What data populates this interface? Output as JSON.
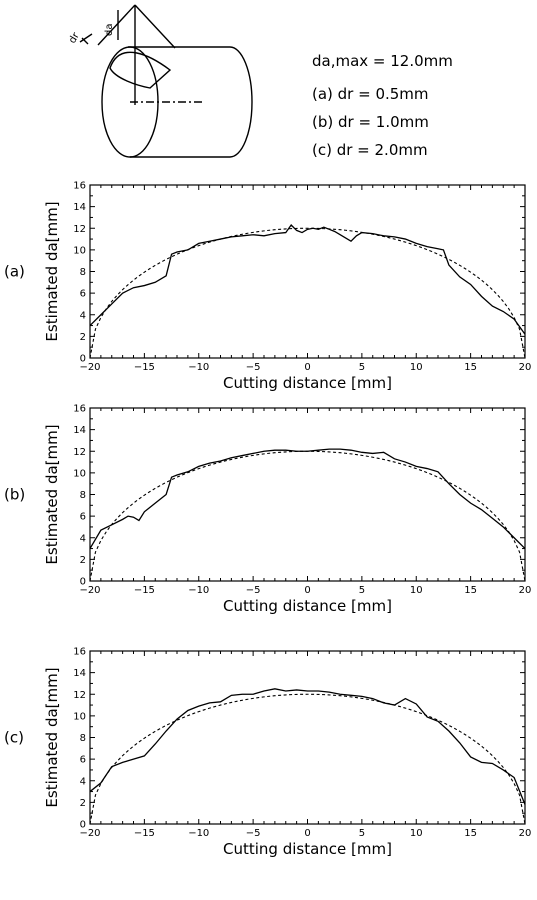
{
  "legend": {
    "max_line": "da,max = 12.0mm",
    "lines": [
      "(a) dr = 0.5mm",
      "(b) dr = 1.0mm",
      "(c) dr = 2.0mm"
    ]
  },
  "diagram": {
    "label_dr": "dr",
    "label_da": "da"
  },
  "chart_data": [
    {
      "type": "line",
      "panel": "(a)",
      "xlabel": "Cutting distance [mm]",
      "ylabel": "Estimated da[mm]",
      "xlim": [
        -20,
        20
      ],
      "ylim": [
        0,
        16
      ],
      "xticks": [
        -20,
        -15,
        -10,
        -5,
        0,
        5,
        10,
        15,
        20
      ],
      "yticks": [
        0,
        2,
        4,
        6,
        8,
        10,
        12,
        14,
        16
      ],
      "series": [
        {
          "style": "solid",
          "points": [
            [
              -20,
              3.0
            ],
            [
              -19,
              4.0
            ],
            [
              -18,
              5.0
            ],
            [
              -17,
              6.0
            ],
            [
              -16,
              6.5
            ],
            [
              -15,
              6.7
            ],
            [
              -14,
              7.0
            ],
            [
              -13,
              7.6
            ],
            [
              -12.5,
              9.6
            ],
            [
              -12,
              9.8
            ],
            [
              -11,
              10.0
            ],
            [
              -10,
              10.6
            ],
            [
              -9,
              10.8
            ],
            [
              -8,
              11.0
            ],
            [
              -7,
              11.2
            ],
            [
              -6,
              11.3
            ],
            [
              -5,
              11.4
            ],
            [
              -4,
              11.3
            ],
            [
              -3,
              11.5
            ],
            [
              -2,
              11.6
            ],
            [
              -1.5,
              12.3
            ],
            [
              -1,
              11.8
            ],
            [
              -0.5,
              11.6
            ],
            [
              0,
              11.9
            ],
            [
              0.5,
              12.0
            ],
            [
              1,
              11.9
            ],
            [
              1.5,
              12.1
            ],
            [
              2,
              11.9
            ],
            [
              2.5,
              11.7
            ],
            [
              3,
              11.4
            ],
            [
              3.5,
              11.1
            ],
            [
              4,
              10.8
            ],
            [
              4.5,
              11.3
            ],
            [
              5,
              11.6
            ],
            [
              6,
              11.5
            ],
            [
              7,
              11.3
            ],
            [
              8,
              11.2
            ],
            [
              9,
              11.0
            ],
            [
              10,
              10.6
            ],
            [
              11,
              10.3
            ],
            [
              12,
              10.1
            ],
            [
              12.5,
              10.0
            ],
            [
              13,
              8.6
            ],
            [
              14,
              7.5
            ],
            [
              15,
              6.8
            ],
            [
              16,
              5.7
            ],
            [
              17,
              4.8
            ],
            [
              18,
              4.3
            ],
            [
              19,
              3.6
            ],
            [
              20,
              2.2
            ]
          ]
        },
        {
          "style": "dashed",
          "points": "semicircle r=20, da_max=12"
        }
      ]
    },
    {
      "type": "line",
      "panel": "(b)",
      "xlabel": "Cutting distance [mm]",
      "ylabel": "Estimated da[mm]",
      "xlim": [
        -20,
        20
      ],
      "ylim": [
        0,
        16
      ],
      "xticks": [
        -20,
        -15,
        -10,
        -5,
        0,
        5,
        10,
        15,
        20
      ],
      "yticks": [
        0,
        2,
        4,
        6,
        8,
        10,
        12,
        14,
        16
      ],
      "series": [
        {
          "style": "solid",
          "points": [
            [
              -20,
              3.0
            ],
            [
              -19,
              4.7
            ],
            [
              -18,
              5.2
            ],
            [
              -17,
              5.7
            ],
            [
              -16.5,
              6.0
            ],
            [
              -16,
              5.9
            ],
            [
              -15.5,
              5.6
            ],
            [
              -15,
              6.4
            ],
            [
              -14,
              7.2
            ],
            [
              -13,
              8.0
            ],
            [
              -12.5,
              9.6
            ],
            [
              -12,
              9.8
            ],
            [
              -11,
              10.1
            ],
            [
              -10,
              10.6
            ],
            [
              -9,
              10.9
            ],
            [
              -8,
              11.1
            ],
            [
              -7,
              11.4
            ],
            [
              -6,
              11.6
            ],
            [
              -5,
              11.8
            ],
            [
              -4,
              12.0
            ],
            [
              -3,
              12.1
            ],
            [
              -2,
              12.1
            ],
            [
              -1,
              12.0
            ],
            [
              0,
              12.0
            ],
            [
              1,
              12.1
            ],
            [
              2,
              12.2
            ],
            [
              3,
              12.2
            ],
            [
              4,
              12.1
            ],
            [
              5,
              11.9
            ],
            [
              6,
              11.8
            ],
            [
              7,
              11.9
            ],
            [
              8,
              11.3
            ],
            [
              9,
              11.0
            ],
            [
              10,
              10.6
            ],
            [
              11,
              10.4
            ],
            [
              12,
              10.1
            ],
            [
              13,
              9.0
            ],
            [
              14,
              8.0
            ],
            [
              15,
              7.2
            ],
            [
              16,
              6.6
            ],
            [
              17,
              5.8
            ],
            [
              18,
              5.0
            ],
            [
              19,
              4.0
            ],
            [
              20,
              3.0
            ]
          ]
        },
        {
          "style": "dashed",
          "points": "semicircle r=20, da_max=12"
        }
      ]
    },
    {
      "type": "line",
      "panel": "(c)",
      "xlabel": "Cutting distance [mm]",
      "ylabel": "Estimated da[mm]",
      "xlim": [
        -20,
        20
      ],
      "ylim": [
        0,
        16
      ],
      "xticks": [
        -20,
        -15,
        -10,
        -5,
        0,
        5,
        10,
        15,
        20
      ],
      "yticks": [
        0,
        2,
        4,
        6,
        8,
        10,
        12,
        14,
        16
      ],
      "series": [
        {
          "style": "solid",
          "points": [
            [
              -20,
              3.0
            ],
            [
              -19,
              3.8
            ],
            [
              -18,
              5.3
            ],
            [
              -17,
              5.7
            ],
            [
              -16,
              6.0
            ],
            [
              -15,
              6.3
            ],
            [
              -14,
              7.4
            ],
            [
              -13,
              8.6
            ],
            [
              -12,
              9.7
            ],
            [
              -11,
              10.5
            ],
            [
              -10,
              10.9
            ],
            [
              -9,
              11.2
            ],
            [
              -8,
              11.3
            ],
            [
              -7,
              11.9
            ],
            [
              -6,
              12.0
            ],
            [
              -5,
              12.0
            ],
            [
              -4,
              12.3
            ],
            [
              -3,
              12.5
            ],
            [
              -2,
              12.3
            ],
            [
              -1,
              12.4
            ],
            [
              0,
              12.3
            ],
            [
              1,
              12.3
            ],
            [
              2,
              12.2
            ],
            [
              3,
              12.0
            ],
            [
              4,
              11.9
            ],
            [
              5,
              11.8
            ],
            [
              6,
              11.6
            ],
            [
              7,
              11.2
            ],
            [
              8,
              11.0
            ],
            [
              9,
              11.6
            ],
            [
              10,
              11.1
            ],
            [
              11,
              9.9
            ],
            [
              12,
              9.5
            ],
            [
              13,
              8.6
            ],
            [
              14,
              7.5
            ],
            [
              15,
              6.2
            ],
            [
              16,
              5.7
            ],
            [
              17,
              5.6
            ],
            [
              18,
              5.0
            ],
            [
              19,
              4.3
            ],
            [
              20,
              1.8
            ]
          ]
        },
        {
          "style": "dashed",
          "points": "semicircle r=20, da_max=12"
        }
      ]
    }
  ]
}
